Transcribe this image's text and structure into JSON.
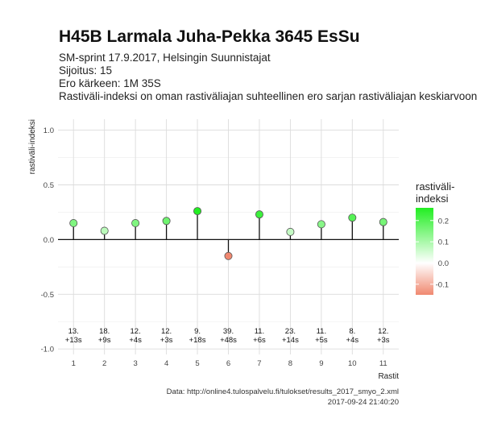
{
  "header": {
    "title": "H45B Larmala Juha-Pekka 3645 EsSu",
    "subtitle_lines": [
      "SM-sprint 17.9.2017, Helsingin Suunnistajat",
      "Sijoitus: 15",
      "Ero kärkeen: 1M 35S",
      "Rastiväli-indeksi on oman rastiväliajan suhteellinen ero sarjan rastiväliajan keskiarvoon"
    ]
  },
  "chart_data": {
    "type": "scatter",
    "x": [
      1,
      2,
      3,
      4,
      5,
      6,
      7,
      8,
      9,
      10,
      11
    ],
    "values": [
      0.15,
      0.08,
      0.15,
      0.17,
      0.26,
      -0.15,
      0.23,
      0.07,
      0.14,
      0.2,
      0.16
    ],
    "point_labels": [
      [
        "13.",
        "+13s"
      ],
      [
        "18.",
        "+9s"
      ],
      [
        "12.",
        "+4s"
      ],
      [
        "12.",
        "+3s"
      ],
      [
        "9.",
        "+18s"
      ],
      [
        "39.",
        "+48s"
      ],
      [
        "11.",
        "+6s"
      ],
      [
        "23.",
        "+14s"
      ],
      [
        "11.",
        "+5s"
      ],
      [
        "8.",
        "+4s"
      ],
      [
        "12.",
        "+3s"
      ]
    ],
    "xlabel": "Rastit",
    "ylabel": "rastiväli-indeksi",
    "xticks": [
      "1",
      "2",
      "3",
      "4",
      "5",
      "6",
      "7",
      "8",
      "9",
      "10",
      "11"
    ],
    "yticks": [
      "-1.0",
      "-0.5",
      "0.0",
      "0.5",
      "1.0"
    ],
    "ytick_values": [
      -1.0,
      -0.5,
      0.0,
      0.5,
      1.0
    ],
    "ylim": [
      -1.05,
      1.1
    ],
    "xlim": [
      0.5,
      11.5
    ],
    "grid": true,
    "legend": {
      "title_lines": [
        "rastiväli-",
        "indeksi"
      ],
      "ticks": [
        "0.2",
        "0.1",
        "0.0",
        "-0.1"
      ],
      "tick_values": [
        0.2,
        0.1,
        0.0,
        -0.1
      ],
      "range": [
        -0.15,
        0.26
      ],
      "placement": "right"
    },
    "colors": {
      "low": "#f08870",
      "mid": "#ffffff",
      "high": "#22ee22"
    }
  },
  "caption": {
    "line1": "Data: http://online4.tulospalvelu.fi/tulokset/results_2017_smyo_2.xml",
    "line2": "2017-09-24 21:40:20"
  }
}
